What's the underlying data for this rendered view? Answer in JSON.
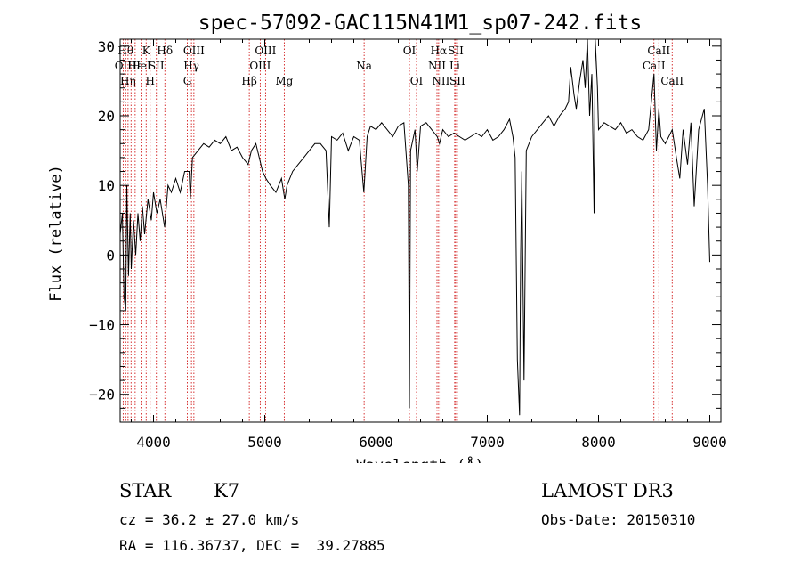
{
  "chart_data": {
    "type": "line",
    "title": "spec-57092-GAC115N41M1_sp07-242.fits",
    "xlabel": "Wavelength (Å)",
    "ylabel": "Flux (relative)",
    "xlim": [
      3700,
      9100
    ],
    "ylim": [
      -24,
      31
    ],
    "xticks": [
      4000,
      5000,
      6000,
      7000,
      8000,
      9000
    ],
    "yticks": [
      -20,
      -10,
      0,
      10,
      20,
      30
    ],
    "series": [
      {
        "name": "flux",
        "points": [
          [
            3700,
            3
          ],
          [
            3720,
            6
          ],
          [
            3735,
            -6
          ],
          [
            3750,
            -8
          ],
          [
            3760,
            10
          ],
          [
            3775,
            -3
          ],
          [
            3790,
            6
          ],
          [
            3800,
            -2
          ],
          [
            3820,
            5
          ],
          [
            3840,
            0
          ],
          [
            3860,
            6
          ],
          [
            3880,
            2
          ],
          [
            3900,
            7
          ],
          [
            3920,
            3
          ],
          [
            3950,
            8
          ],
          [
            3980,
            5
          ],
          [
            4000,
            9
          ],
          [
            4030,
            6
          ],
          [
            4060,
            8
          ],
          [
            4100,
            4
          ],
          [
            4130,
            10
          ],
          [
            4160,
            9
          ],
          [
            4200,
            11
          ],
          [
            4240,
            9
          ],
          [
            4280,
            12
          ],
          [
            4320,
            12
          ],
          [
            4330,
            8
          ],
          [
            4350,
            14
          ],
          [
            4400,
            15
          ],
          [
            4450,
            16
          ],
          [
            4500,
            15.5
          ],
          [
            4550,
            16.5
          ],
          [
            4600,
            16
          ],
          [
            4650,
            17
          ],
          [
            4700,
            15
          ],
          [
            4750,
            15.5
          ],
          [
            4800,
            14
          ],
          [
            4850,
            13
          ],
          [
            4880,
            15
          ],
          [
            4920,
            16
          ],
          [
            4950,
            14
          ],
          [
            4980,
            12
          ],
          [
            5010,
            11
          ],
          [
            5050,
            10
          ],
          [
            5100,
            9
          ],
          [
            5150,
            11
          ],
          [
            5180,
            8
          ],
          [
            5200,
            10
          ],
          [
            5250,
            12
          ],
          [
            5300,
            13
          ],
          [
            5350,
            14
          ],
          [
            5400,
            15
          ],
          [
            5450,
            16
          ],
          [
            5500,
            16
          ],
          [
            5550,
            15
          ],
          [
            5580,
            4
          ],
          [
            5600,
            17
          ],
          [
            5650,
            16.5
          ],
          [
            5700,
            17.5
          ],
          [
            5750,
            15
          ],
          [
            5800,
            17
          ],
          [
            5850,
            16.5
          ],
          [
            5890,
            9
          ],
          [
            5920,
            17
          ],
          [
            5950,
            18.5
          ],
          [
            6000,
            18
          ],
          [
            6050,
            19
          ],
          [
            6100,
            18
          ],
          [
            6150,
            17
          ],
          [
            6200,
            18.5
          ],
          [
            6250,
            19
          ],
          [
            6290,
            10
          ],
          [
            6300,
            -22
          ],
          [
            6310,
            15
          ],
          [
            6350,
            18
          ],
          [
            6370,
            12
          ],
          [
            6400,
            18.5
          ],
          [
            6450,
            19
          ],
          [
            6500,
            18
          ],
          [
            6550,
            17
          ],
          [
            6570,
            16
          ],
          [
            6600,
            18
          ],
          [
            6650,
            17
          ],
          [
            6700,
            17.5
          ],
          [
            6750,
            17
          ],
          [
            6800,
            16.5
          ],
          [
            6850,
            17
          ],
          [
            6900,
            17.5
          ],
          [
            6950,
            17
          ],
          [
            7000,
            18
          ],
          [
            7050,
            16.5
          ],
          [
            7100,
            17
          ],
          [
            7150,
            18
          ],
          [
            7200,
            19.5
          ],
          [
            7230,
            17
          ],
          [
            7250,
            14
          ],
          [
            7270,
            -15
          ],
          [
            7290,
            -23
          ],
          [
            7300,
            0
          ],
          [
            7310,
            12
          ],
          [
            7330,
            -18
          ],
          [
            7350,
            15
          ],
          [
            7400,
            17
          ],
          [
            7450,
            18
          ],
          [
            7500,
            19
          ],
          [
            7550,
            20
          ],
          [
            7600,
            18.5
          ],
          [
            7650,
            20
          ],
          [
            7700,
            21
          ],
          [
            7730,
            22
          ],
          [
            7750,
            27
          ],
          [
            7780,
            23
          ],
          [
            7800,
            21
          ],
          [
            7830,
            25
          ],
          [
            7860,
            28
          ],
          [
            7880,
            24
          ],
          [
            7900,
            31
          ],
          [
            7920,
            20
          ],
          [
            7940,
            26
          ],
          [
            7960,
            6
          ],
          [
            7970,
            31
          ],
          [
            7990,
            24
          ],
          [
            8000,
            18
          ],
          [
            8050,
            19
          ],
          [
            8100,
            18.5
          ],
          [
            8150,
            18
          ],
          [
            8200,
            19
          ],
          [
            8250,
            17.5
          ],
          [
            8300,
            18
          ],
          [
            8350,
            17
          ],
          [
            8400,
            16.5
          ],
          [
            8450,
            18
          ],
          [
            8498,
            26
          ],
          [
            8520,
            15
          ],
          [
            8542,
            21
          ],
          [
            8560,
            17
          ],
          [
            8600,
            16
          ],
          [
            8662,
            18
          ],
          [
            8700,
            14
          ],
          [
            8730,
            11
          ],
          [
            8760,
            18
          ],
          [
            8800,
            13
          ],
          [
            8830,
            19
          ],
          [
            8860,
            7
          ],
          [
            8900,
            18
          ],
          [
            8950,
            21
          ],
          [
            8980,
            10
          ],
          [
            9000,
            -1
          ]
        ]
      }
    ],
    "lines": [
      {
        "w": 3727,
        "label": "OII",
        "row": 1
      },
      {
        "w": 3750,
        "label": "Hθ",
        "row": 0
      },
      {
        "w": 3771,
        "label": "Hη",
        "row": 2
      },
      {
        "w": 3798,
        "label": "",
        "row": 0
      },
      {
        "w": 3835,
        "label": "Hε",
        "row": 1
      },
      {
        "w": 3889,
        "label": "HeI",
        "row": 1
      },
      {
        "w": 3934,
        "label": "K",
        "row": 0
      },
      {
        "w": 3970,
        "label": "H",
        "row": 2
      },
      {
        "w": 4026,
        "label": "SII",
        "row": 1
      },
      {
        "w": 4102,
        "label": "Hδ",
        "row": 0
      },
      {
        "w": 4304,
        "label": "G",
        "row": 2
      },
      {
        "w": 4341,
        "label": "Hγ",
        "row": 1
      },
      {
        "w": 4363,
        "label": "OIII",
        "row": 0
      },
      {
        "w": 4861,
        "label": "Hβ",
        "row": 2
      },
      {
        "w": 4959,
        "label": "OIII",
        "row": 1
      },
      {
        "w": 5007,
        "label": "OIII",
        "row": 0
      },
      {
        "w": 5175,
        "label": "Mg",
        "row": 2
      },
      {
        "w": 5893,
        "label": "Na",
        "row": 1
      },
      {
        "w": 6300,
        "label": "OI",
        "row": 0
      },
      {
        "w": 6364,
        "label": "OI",
        "row": 2
      },
      {
        "w": 6548,
        "label": "NII",
        "row": 1
      },
      {
        "w": 6563,
        "label": "Hα",
        "row": 0
      },
      {
        "w": 6583,
        "label": "NII",
        "row": 2
      },
      {
        "w": 6707,
        "label": "Li",
        "row": 1
      },
      {
        "w": 6716,
        "label": "SII",
        "row": 0
      },
      {
        "w": 6731,
        "label": "SII",
        "row": 2
      },
      {
        "w": 8498,
        "label": "CaII",
        "row": 1
      },
      {
        "w": 8542,
        "label": "CaII",
        "row": 0
      },
      {
        "w": 8662,
        "label": "CaII",
        "row": 2
      }
    ]
  },
  "info": {
    "class": "STAR",
    "subclass": "K7",
    "survey": "LAMOST DR3",
    "cz": "cz = 36.2 ± 27.0 km/s",
    "obs_date": "Obs-Date: 20150310",
    "coords": "RA = 116.36737, DEC =  39.27885"
  }
}
